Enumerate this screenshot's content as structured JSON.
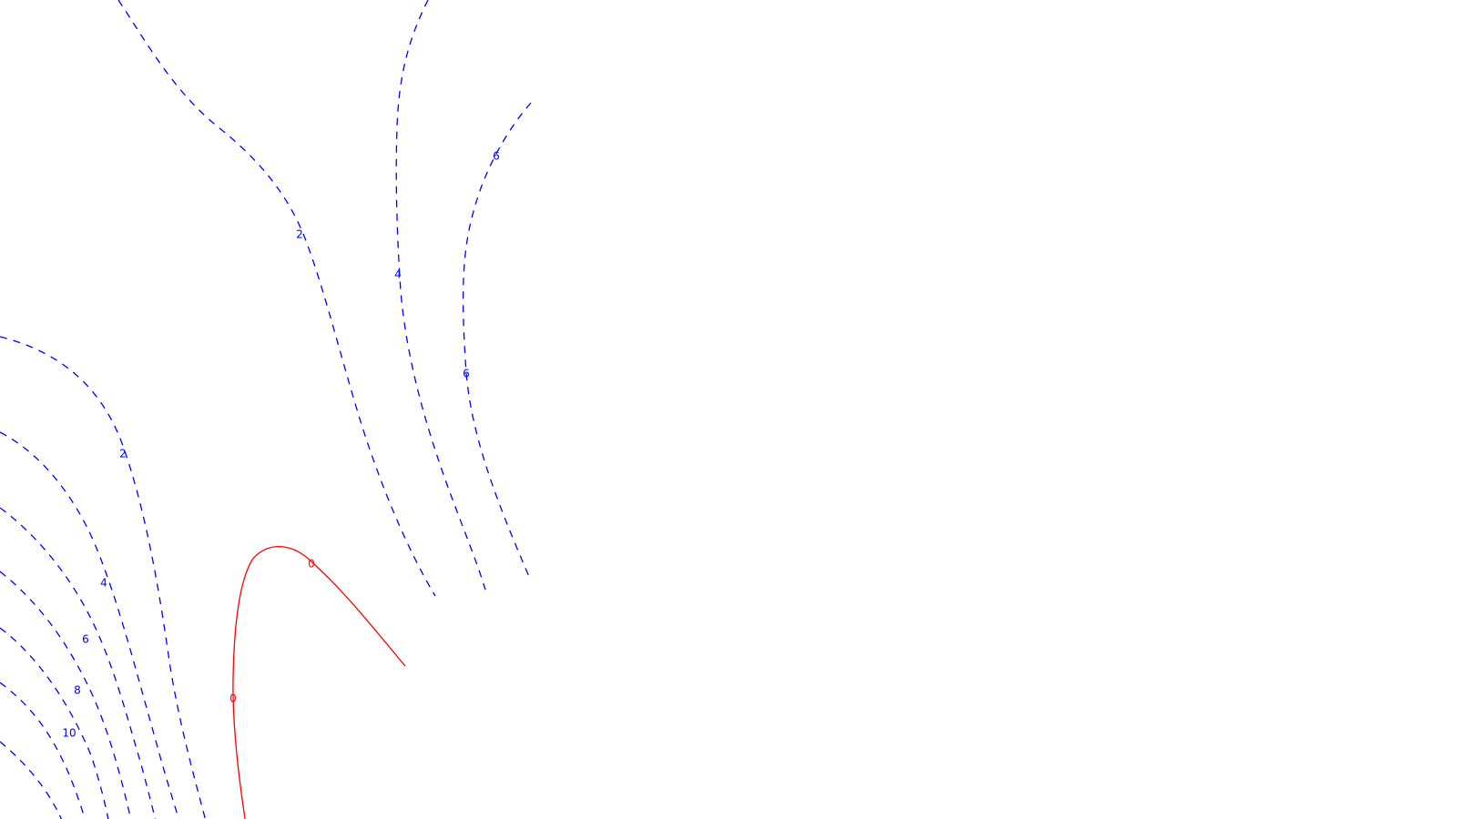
{
  "chart_data": {
    "type": "contour",
    "title": "",
    "xlabel": "",
    "ylabel": "",
    "grid": false,
    "axes_visible": false,
    "colors": {
      "positive": "#ff0000",
      "negative": "#0000ff"
    },
    "contours": [
      {
        "level": "0",
        "sign": "positive",
        "label": "0",
        "label_count": 2
      },
      {
        "level": "2",
        "sign": "negative",
        "label": "2",
        "label_count": 2
      },
      {
        "level": "4",
        "sign": "negative",
        "label": "4",
        "label_count": 2
      },
      {
        "level": "6",
        "sign": "negative",
        "label": "6",
        "label_count": 3
      },
      {
        "level": "8",
        "sign": "negative",
        "label": "8",
        "label_count": 1
      },
      {
        "level": "10",
        "sign": "negative",
        "label": "10",
        "label_count": 1
      }
    ]
  }
}
